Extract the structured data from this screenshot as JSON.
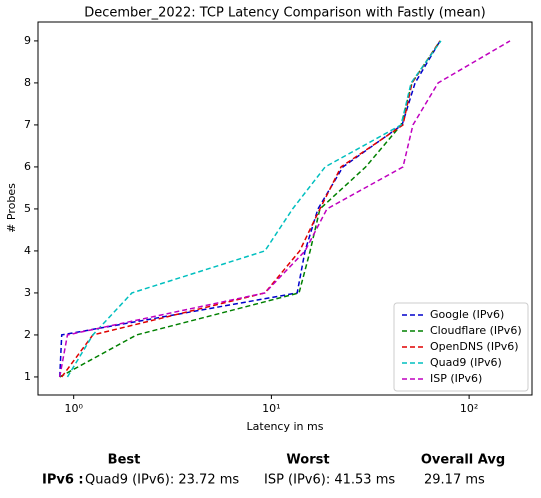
{
  "chart_data": {
    "type": "line",
    "title": "December_2022: TCP Latency Comparison with Fastly (mean)",
    "xlabel": "Latency in ms",
    "ylabel": "# Probes",
    "xscale": "log",
    "xlim": [
      0.66,
      208
    ],
    "ylim": [
      0.57,
      9.45
    ],
    "xticks": [
      {
        "value": 1,
        "label": "10⁰"
      },
      {
        "value": 10,
        "label": "10¹"
      },
      {
        "value": 100,
        "label": "10²"
      }
    ],
    "yticks": [
      1,
      2,
      3,
      4,
      5,
      6,
      7,
      8,
      9
    ],
    "legend": "lower right",
    "series": [
      {
        "name": "Google (IPv6)",
        "color": "#0000cc",
        "x": [
          0.85,
          0.87,
          13.5,
          14.8,
          17.2,
          23,
          45.8,
          53.3,
          71.3
        ],
        "values": [
          1,
          2,
          3,
          4,
          5,
          6,
          7,
          8,
          9
        ]
      },
      {
        "name": "Cloudflare (IPv6)",
        "color": "#008000",
        "x": [
          0.85,
          2.08,
          13.8,
          15.7,
          17.6,
          30,
          45.3,
          51.4,
          71.3
        ],
        "values": [
          1,
          2,
          3,
          4,
          5,
          6,
          7,
          8,
          9
        ]
      },
      {
        "name": "OpenDNS (IPv6)",
        "color": "#e00000",
        "x": [
          0.87,
          1.25,
          9.27,
          13.9,
          17.6,
          22.5,
          46.3,
          51.4,
          71.3
        ],
        "values": [
          1,
          2,
          3,
          4,
          5,
          6,
          7,
          8,
          9
        ]
      },
      {
        "name": "Quad9 (IPv6)",
        "color": "#00bfbf",
        "x": [
          0.93,
          1.25,
          1.97,
          9.27,
          12.8,
          18.7,
          45.3,
          50.9,
          72
        ],
        "values": [
          1,
          2,
          3,
          4,
          5,
          6,
          7,
          8,
          9
        ]
      },
      {
        "name": "ISP (IPv6)",
        "color": "#bf00bf",
        "x": [
          0.85,
          0.93,
          9.27,
          14.8,
          19.1,
          46.3,
          52,
          69.7,
          161
        ],
        "values": [
          1,
          2,
          3,
          4,
          5,
          6,
          7,
          8,
          9
        ]
      }
    ]
  },
  "summary": {
    "headers": [
      "Best",
      "Worst",
      "Overall Avg"
    ],
    "row_label": "IPv6 :",
    "values": [
      "Quad9 (IPv6): 23.72 ms",
      "ISP (IPv6): 41.53 ms",
      "29.17 ms"
    ]
  }
}
